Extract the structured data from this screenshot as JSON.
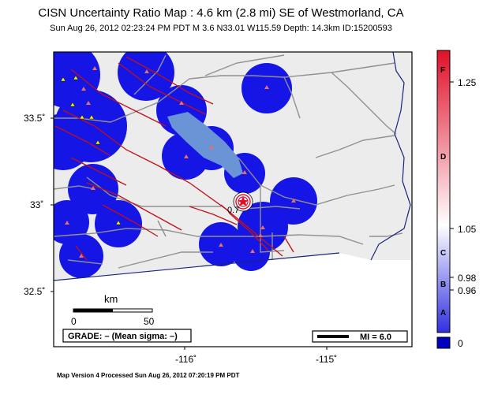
{
  "title": "CISN Uncertainty Ratio Map : 4.6 km (2.8 mi) SE of Westmorland, CA",
  "subtitle": "Sun Aug 26, 2012 02:23:24 PM PDT   M 3.6   N33.01 W115.59   Depth: 14.3km   ID:15200593",
  "footer": "Map Version 4 Processed Sun Aug 26, 2012 07:20:19 PM PDT",
  "map": {
    "lat_ticks": [
      "33.5˚",
      "33˚",
      "32.5˚"
    ],
    "lon_ticks": [
      "-116˚",
      "-115˚"
    ],
    "scale": {
      "label": "km",
      "start": "0",
      "end": "50"
    },
    "grade_box": "GRADE: – (Mean sigma: –)",
    "legend_box": "MI = 6.0",
    "epicenter_label": "0.7"
  },
  "colorbar": {
    "ticks": [
      "1.25",
      "1.05",
      "0.98",
      "0.96",
      "0"
    ],
    "grades": [
      "F",
      "D",
      "C",
      "B",
      "A"
    ],
    "colors": {
      "top": "#e0102a",
      "mid": "#ffffff",
      "bottom": "#0000c0"
    }
  },
  "colors": {
    "coverage": "#1515e6",
    "lake": "#6b94d6",
    "fault": "#c0101a",
    "road": "#909090",
    "station_red": "#e87060",
    "station_yellow": "#f2f000"
  }
}
